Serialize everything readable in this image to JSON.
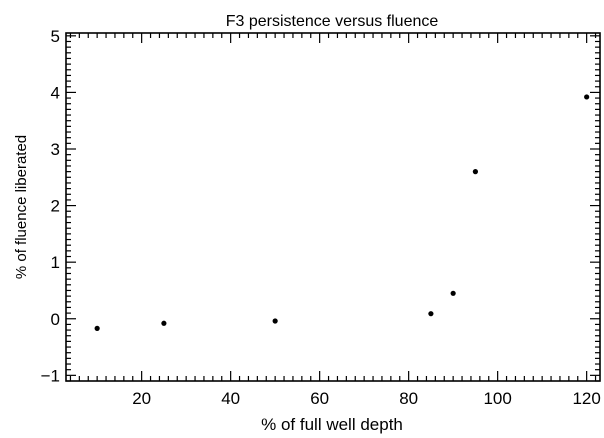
{
  "chart_data": {
    "type": "scatter",
    "title": "F3 persistence versus fluence",
    "xlabel": "% of full well depth",
    "ylabel": "% of fluence liberated",
    "xlim": [
      3,
      123
    ],
    "ylim": [
      -1.1,
      5.05
    ],
    "x_major_ticks": [
      20,
      40,
      60,
      80,
      100,
      120
    ],
    "x_minor_step": 2,
    "y_major_ticks": [
      -1,
      0,
      1,
      2,
      3,
      4,
      5
    ],
    "y_minor_step": 0.1,
    "grid": false,
    "point_color": "#000000",
    "points": [
      {
        "x": 10,
        "y": -0.17
      },
      {
        "x": 25,
        "y": -0.08
      },
      {
        "x": 50,
        "y": -0.04
      },
      {
        "x": 85,
        "y": 0.09
      },
      {
        "x": 90,
        "y": 0.45
      },
      {
        "x": 95,
        "y": 2.6
      },
      {
        "x": 120,
        "y": 3.92
      }
    ]
  }
}
